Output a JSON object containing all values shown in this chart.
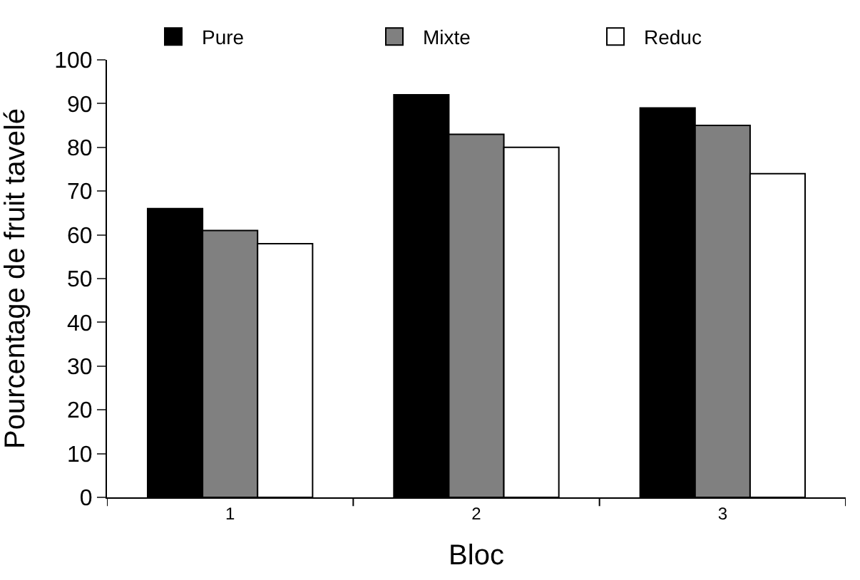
{
  "chart_data": {
    "type": "bar",
    "xlabel": "Bloc",
    "ylabel": "Pourcentage de fruit tavelé",
    "categories": [
      "1",
      "2",
      "3"
    ],
    "series": [
      {
        "name": "Pure",
        "color": "#000000",
        "values": [
          66,
          92,
          89
        ]
      },
      {
        "name": "Mixte",
        "color": "#808080",
        "values": [
          61,
          83,
          85
        ]
      },
      {
        "name": "Reduc",
        "color": "#ffffff",
        "values": [
          58,
          80,
          74
        ]
      }
    ],
    "ylim": [
      0,
      100
    ],
    "yticks": [
      0,
      10,
      20,
      30,
      40,
      50,
      60,
      70,
      80,
      90,
      100
    ],
    "legend": "top"
  }
}
